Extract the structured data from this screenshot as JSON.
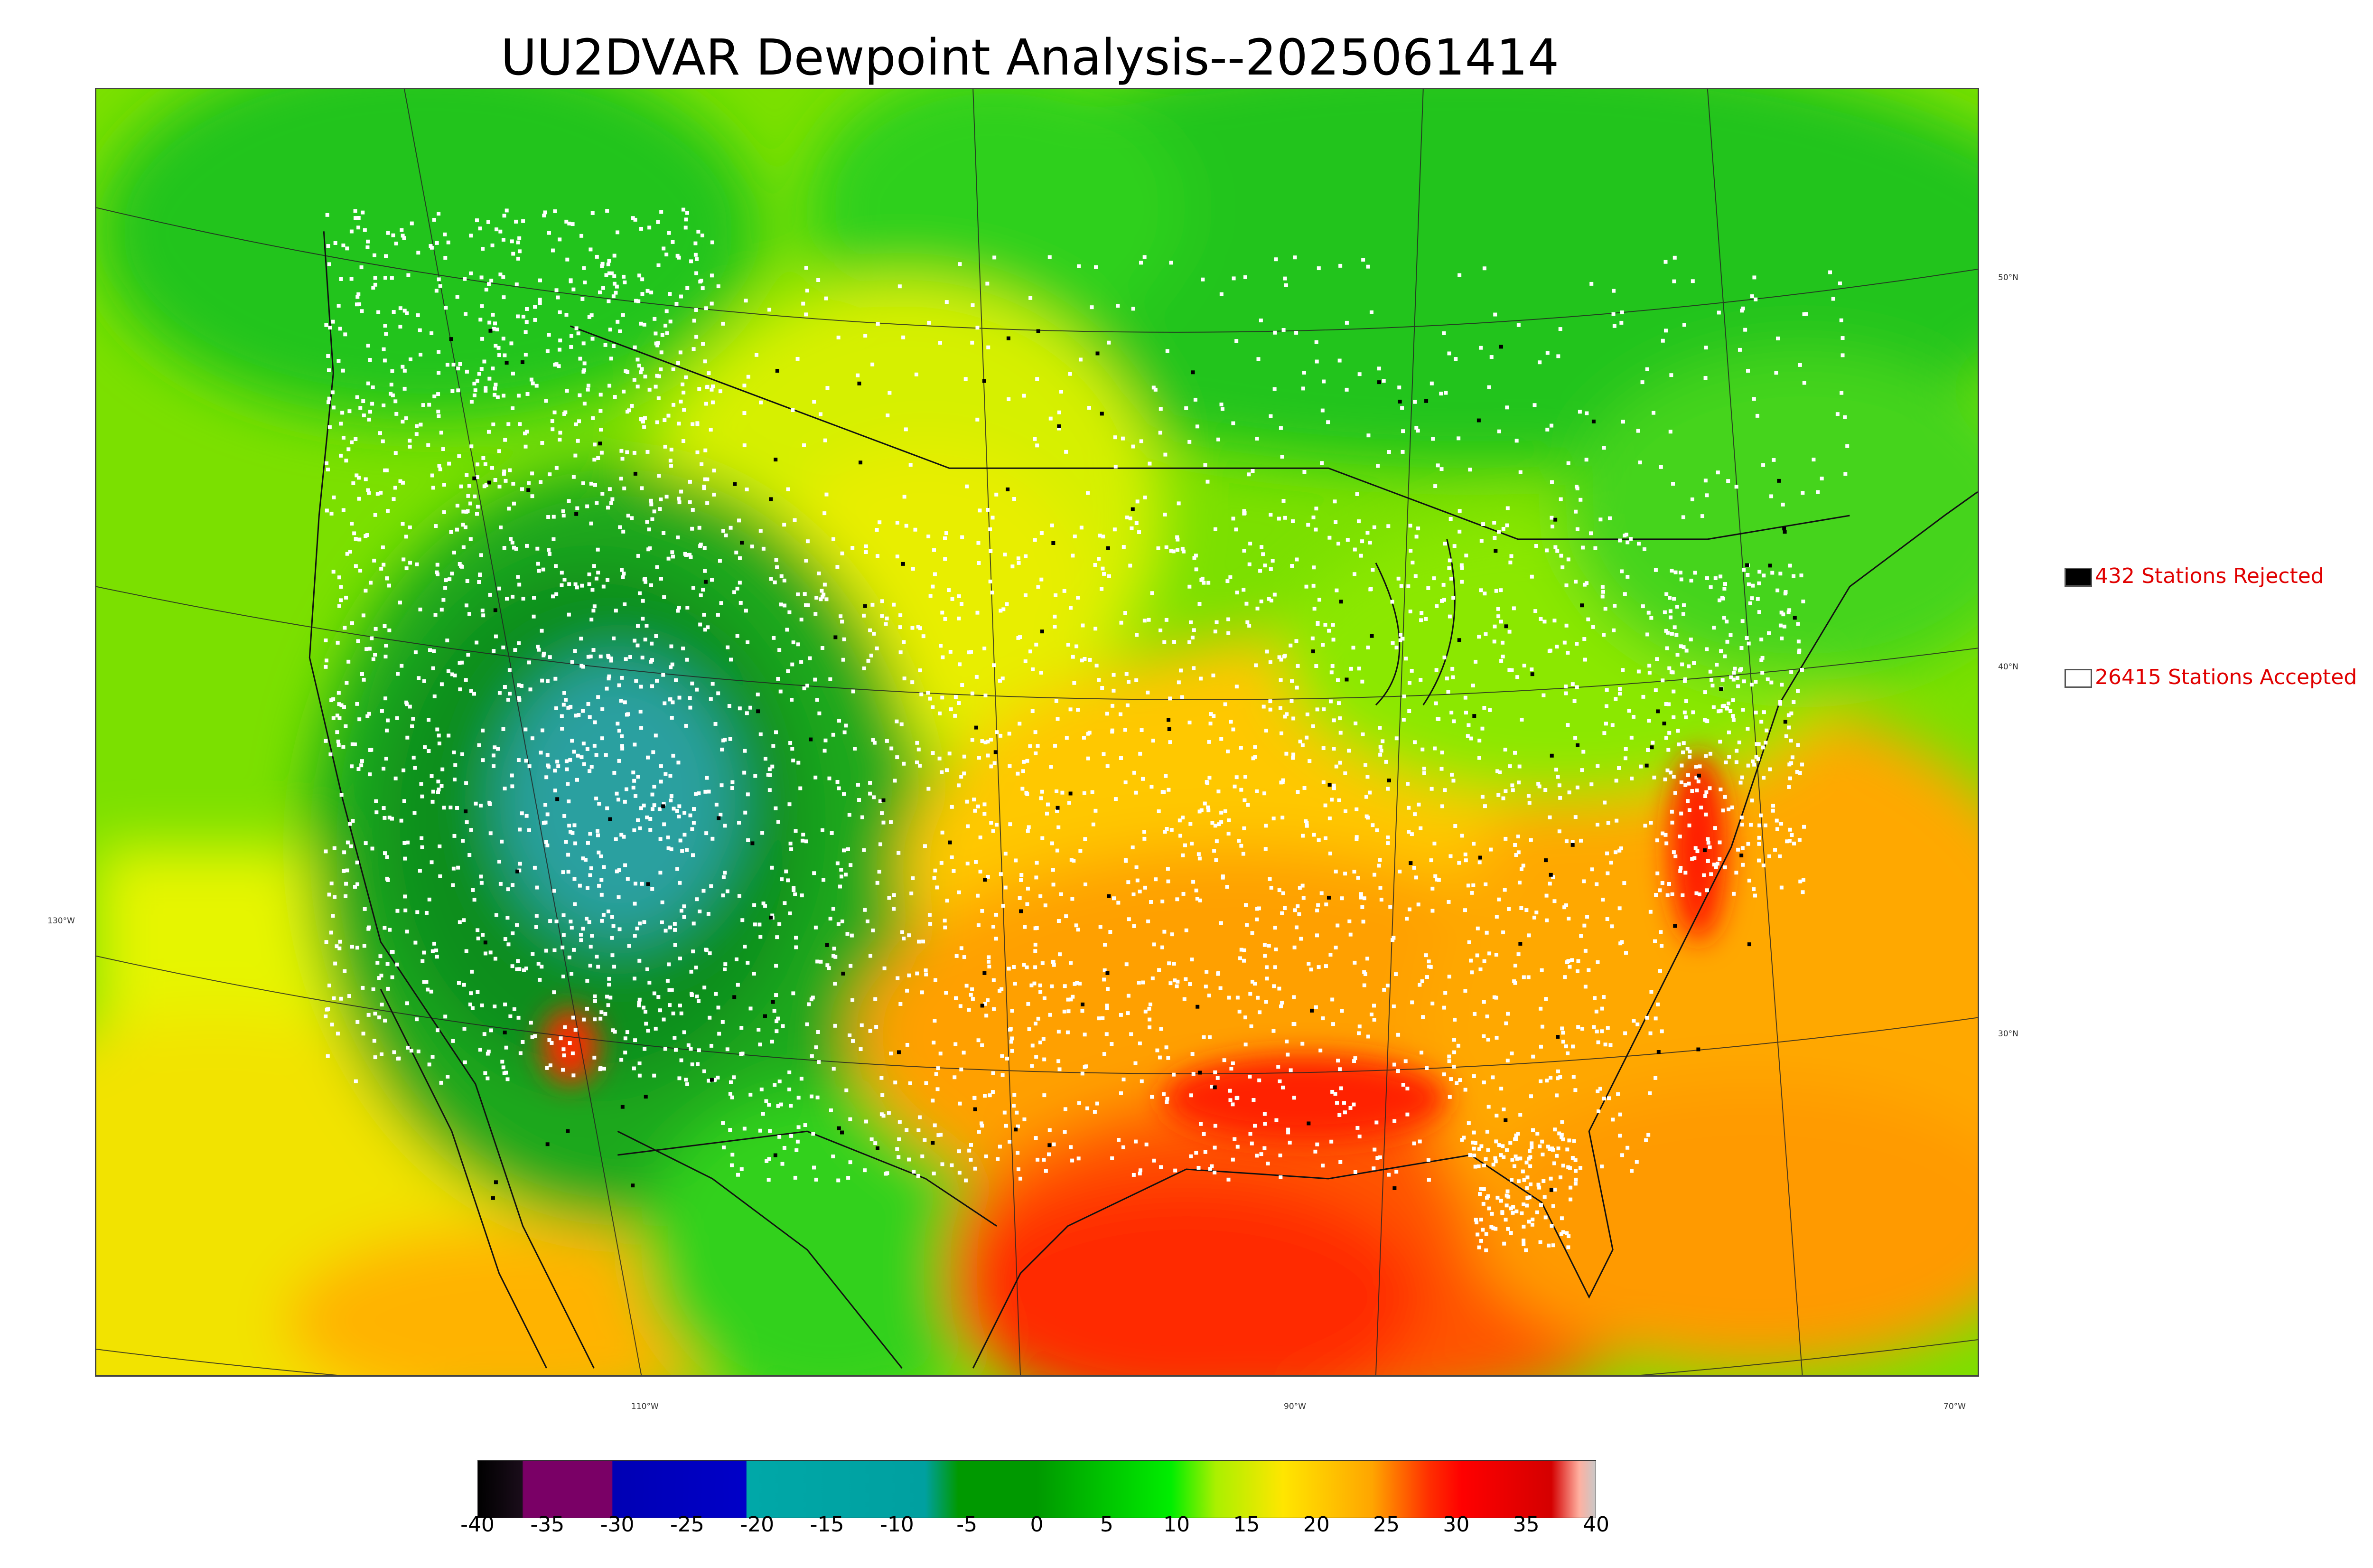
{
  "title": "UU2DVAR Dewpoint Analysis--2025061414",
  "map": {
    "lat_labels": [
      "50°N",
      "40°N",
      "30°N"
    ],
    "lon_labels": [
      "130°W",
      "110°W",
      "90°W",
      "70°W"
    ]
  },
  "legend": {
    "rejected": {
      "count_text": "432 Stations Rejected",
      "swatch_color": "#000000"
    },
    "accepted": {
      "count_text": "26415 Stations Accepted",
      "swatch_color": "#ffffff"
    }
  },
  "colorbar": {
    "ticks": [
      "-40",
      "-35",
      "-30",
      "-25",
      "-20",
      "-15",
      "-10",
      "-5",
      "0",
      "5",
      "10",
      "15",
      "20",
      "25",
      "30",
      "35",
      "40"
    ],
    "colors": {
      "dark": "#1a0d1a",
      "purple": "#7a0066",
      "blue": "#0000b4",
      "teal": "#00a8a8",
      "green": "#009900",
      "bright_green": "#00ee00",
      "yellow_green": "#ccff00",
      "yellow": "#ffd700",
      "orange": "#ffa500",
      "red": "#ff1a00",
      "dark_red": "#d40000",
      "light_gray": "#c8c8c8"
    }
  },
  "text_colors": {
    "legend": "#e00000",
    "title": "#000000"
  }
}
